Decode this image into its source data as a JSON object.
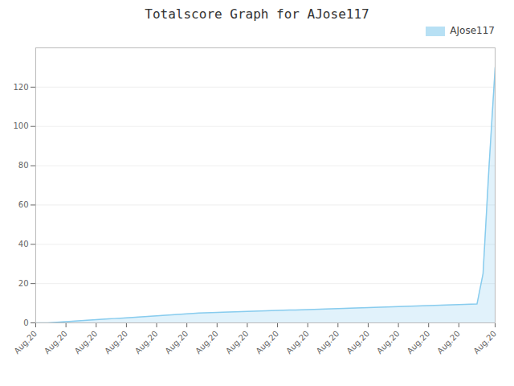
{
  "chart_data": {
    "type": "area",
    "title": "Totalscore Graph for AJose117",
    "x": [
      0,
      1,
      2,
      3,
      4,
      5,
      6,
      7,
      8,
      9,
      10,
      11,
      12,
      13,
      14,
      15,
      16,
      17,
      18,
      19,
      20,
      21,
      22,
      23,
      24,
      25,
      26,
      27,
      28,
      29,
      30,
      31,
      32,
      33,
      34,
      35,
      36,
      37,
      38,
      39,
      40,
      41,
      42,
      43,
      44,
      45,
      46,
      47,
      48,
      49,
      50,
      51,
      52,
      53,
      54,
      55,
      56,
      57,
      58,
      59,
      60,
      61,
      62,
      63,
      64,
      65,
      66,
      67,
      68,
      69,
      70,
      71,
      72,
      73,
      74,
      75,
      76
    ],
    "series": [
      {
        "name": "AJose117",
        "color": "#88ccee",
        "values": [
          0,
          0,
          0,
          0.2,
          0.4,
          0.6,
          0.8,
          1.0,
          1.2,
          1.4,
          1.6,
          1.8,
          2.0,
          2.2,
          2.4,
          2.6,
          2.8,
          3.0,
          3.2,
          3.4,
          3.6,
          3.8,
          4.0,
          4.2,
          4.4,
          4.6,
          4.8,
          5.0,
          5.1,
          5.2,
          5.3,
          5.4,
          5.5,
          5.6,
          5.7,
          5.8,
          5.9,
          6.0,
          6.1,
          6.2,
          6.3,
          6.4,
          6.5,
          6.6,
          6.7,
          6.8,
          6.9,
          7.0,
          7.1,
          7.2,
          7.3,
          7.4,
          7.5,
          7.6,
          7.7,
          7.8,
          7.9,
          8.0,
          8.1,
          8.2,
          8.3,
          8.4,
          8.5,
          8.6,
          8.7,
          8.8,
          8.9,
          9.0,
          9.1,
          9.2,
          9.3,
          9.4,
          9.5,
          9.6,
          25,
          80,
          130
        ]
      }
    ],
    "xlim": [
      0,
      76
    ],
    "xticks": [
      {
        "value": 0,
        "label": "Aug.20"
      },
      {
        "value": 5,
        "label": "Aug.20"
      },
      {
        "value": 10,
        "label": "Aug.20"
      },
      {
        "value": 15,
        "label": "Aug.20"
      },
      {
        "value": 20,
        "label": "Aug.20"
      },
      {
        "value": 25,
        "label": "Aug.20"
      },
      {
        "value": 30,
        "label": "Aug.20"
      },
      {
        "value": 35,
        "label": "Aug.20"
      },
      {
        "value": 40,
        "label": "Aug.20"
      },
      {
        "value": 45,
        "label": "Aug.20"
      },
      {
        "value": 50,
        "label": "Aug.20"
      },
      {
        "value": 55,
        "label": "Aug.20"
      },
      {
        "value": 60,
        "label": "Aug.20"
      },
      {
        "value": 65,
        "label": "Aug.20"
      },
      {
        "value": 70,
        "label": "Aug.20"
      },
      {
        "value": 76,
        "label": "Aug.20"
      }
    ],
    "ylim": [
      0,
      140
    ],
    "yticks": [
      0,
      20,
      40,
      60,
      80,
      100,
      120
    ],
    "grid": true,
    "legend": "upper right"
  }
}
